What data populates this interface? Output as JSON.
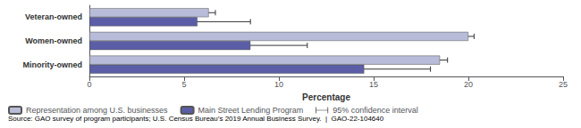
{
  "chart_data": {
    "type": "bar",
    "orientation": "horizontal",
    "categories": [
      "Minority-owned",
      "Women-owned",
      "Veteran-owned"
    ],
    "series": [
      {
        "name": "Representation among U.S. businesses",
        "color": "#b8bcd8",
        "values": [
          18.5,
          20.0,
          6.3
        ],
        "errors": [
          0.4,
          0.3,
          0.35
        ]
      },
      {
        "name": "Main Street Lending Program",
        "color": "#5b5ea6",
        "values": [
          14.5,
          8.5,
          5.7
        ],
        "errors": [
          3.5,
          3.0,
          2.8
        ]
      }
    ],
    "error_bar_label": "95% confidence interval",
    "xlabel": "Percentage",
    "xlim": [
      0,
      25
    ],
    "xticks": [
      0,
      5,
      10,
      15,
      20,
      25
    ],
    "grid": false,
    "legend": "bottom",
    "source": "Source: GAO survey of program participants; U.S. Census Bureau’s 2019 Annual Business Survey.  |  GAO-22-104640"
  }
}
